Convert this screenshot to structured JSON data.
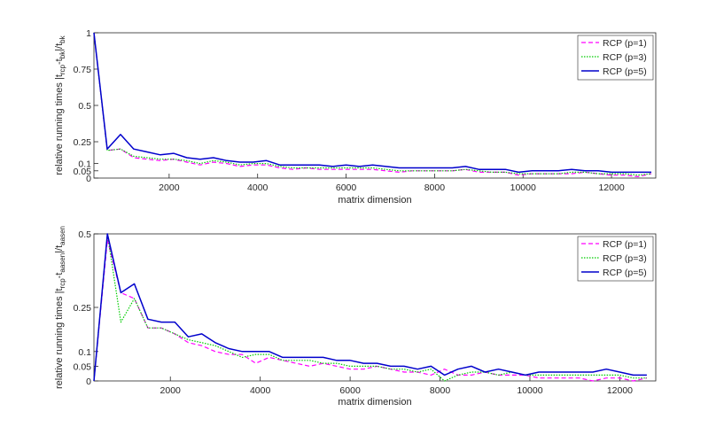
{
  "chart_data": [
    {
      "type": "line",
      "xlabel": "matrix dimension",
      "ylabel_main": "relative running times |t",
      "ylabel_sub1": "rcp",
      "ylabel_mid": "-t",
      "ylabel_sub2": "bk",
      "ylabel_tail": "|/t",
      "ylabel_sub3": "bk",
      "xlim": [
        300,
        13000
      ],
      "ylim": [
        0,
        1
      ],
      "xticks": [
        "2000",
        "4000",
        "6000",
        "8000",
        "10000",
        "12000"
      ],
      "yticks": [
        "1",
        "0.75",
        "0.5",
        "0.25",
        "0.1",
        "0.05",
        "0"
      ],
      "legend_position": "top-right",
      "x": [
        300,
        600,
        900,
        1200,
        1500,
        1800,
        2100,
        2400,
        2700,
        3000,
        3300,
        3600,
        3900,
        4200,
        4500,
        4800,
        5100,
        5400,
        5700,
        6000,
        6300,
        6600,
        6900,
        7200,
        7500,
        7800,
        8100,
        8400,
        8700,
        9000,
        9300,
        9600,
        9900,
        10200,
        10500,
        10800,
        11100,
        11400,
        11700,
        12000,
        12300,
        12600,
        12900
      ],
      "series": [
        {
          "name": "RCP (p=1)",
          "color": "#ff00ff",
          "dash": "dashed",
          "values": [
            1.0,
            0.19,
            0.2,
            0.14,
            0.13,
            0.12,
            0.13,
            0.11,
            0.09,
            0.11,
            0.1,
            0.08,
            0.09,
            0.09,
            0.07,
            0.06,
            0.07,
            0.06,
            0.06,
            0.06,
            0.06,
            0.06,
            0.05,
            0.04,
            0.05,
            0.05,
            0.05,
            0.05,
            0.06,
            0.04,
            0.04,
            0.04,
            0.02,
            0.03,
            0.03,
            0.03,
            0.03,
            0.04,
            0.03,
            0.02,
            0.02,
            0.01,
            0.03
          ]
        },
        {
          "name": "RCP (p=3)",
          "color": "#00cc00",
          "dash": "dotted",
          "values": [
            1.0,
            0.19,
            0.2,
            0.15,
            0.14,
            0.13,
            0.13,
            0.12,
            0.1,
            0.12,
            0.11,
            0.09,
            0.1,
            0.1,
            0.08,
            0.07,
            0.07,
            0.07,
            0.07,
            0.07,
            0.07,
            0.07,
            0.06,
            0.05,
            0.05,
            0.05,
            0.05,
            0.05,
            0.06,
            0.05,
            0.04,
            0.04,
            0.03,
            0.03,
            0.03,
            0.03,
            0.04,
            0.04,
            0.03,
            0.03,
            0.03,
            0.02,
            0.03
          ]
        },
        {
          "name": "RCP (p=5)",
          "color": "#0000cc",
          "dash": "solid",
          "values": [
            1.0,
            0.2,
            0.3,
            0.2,
            0.18,
            0.16,
            0.17,
            0.14,
            0.13,
            0.14,
            0.12,
            0.11,
            0.11,
            0.12,
            0.09,
            0.09,
            0.09,
            0.09,
            0.08,
            0.09,
            0.08,
            0.09,
            0.08,
            0.07,
            0.07,
            0.07,
            0.07,
            0.07,
            0.08,
            0.06,
            0.06,
            0.06,
            0.04,
            0.05,
            0.05,
            0.05,
            0.06,
            0.05,
            0.05,
            0.04,
            0.04,
            0.04,
            0.04
          ]
        }
      ]
    },
    {
      "type": "line",
      "xlabel": "matrix dimension",
      "ylabel_main": "relative running times |t",
      "ylabel_sub1": "rcp",
      "ylabel_mid": "-t",
      "ylabel_sub2": "aasen",
      "ylabel_tail": "|/t",
      "ylabel_sub3": "aasen",
      "xlim": [
        300,
        12800
      ],
      "ylim": [
        0,
        0.5
      ],
      "xticks": [
        "2000",
        "4000",
        "6000",
        "8000",
        "10000",
        "12000"
      ],
      "yticks": [
        "0.5",
        "0.25",
        "0.1",
        "0.05",
        "0"
      ],
      "legend_position": "top-right",
      "x": [
        300,
        600,
        900,
        1200,
        1500,
        1800,
        2100,
        2400,
        2700,
        3000,
        3300,
        3600,
        3900,
        4200,
        4500,
        4800,
        5100,
        5400,
        5700,
        6000,
        6300,
        6600,
        6900,
        7200,
        7500,
        7800,
        8100,
        8400,
        8700,
        9000,
        9300,
        9600,
        9900,
        10200,
        10500,
        10800,
        11100,
        11400,
        11700,
        12000,
        12300,
        12600
      ],
      "series": [
        {
          "name": "RCP (p=1)",
          "color": "#ff00ff",
          "dash": "dashed",
          "values": [
            0.0,
            0.48,
            0.3,
            0.28,
            0.18,
            0.18,
            0.16,
            0.13,
            0.12,
            0.1,
            0.09,
            0.09,
            0.06,
            0.08,
            0.07,
            0.06,
            0.05,
            0.06,
            0.05,
            0.04,
            0.04,
            0.05,
            0.04,
            0.03,
            0.03,
            0.02,
            0.04,
            0.02,
            0.02,
            0.03,
            0.02,
            0.02,
            0.02,
            0.01,
            0.01,
            0.01,
            0.01,
            0.0,
            0.01,
            0.01,
            0.0,
            0.01
          ]
        },
        {
          "name": "RCP (p=3)",
          "color": "#00cc00",
          "dash": "dotted",
          "values": [
            0.0,
            0.5,
            0.2,
            0.28,
            0.18,
            0.18,
            0.16,
            0.14,
            0.13,
            0.12,
            0.1,
            0.08,
            0.09,
            0.09,
            0.07,
            0.07,
            0.07,
            0.06,
            0.06,
            0.05,
            0.05,
            0.05,
            0.04,
            0.04,
            0.03,
            0.04,
            0.0,
            0.02,
            0.03,
            0.03,
            0.02,
            0.03,
            0.02,
            0.02,
            0.02,
            0.02,
            0.02,
            0.02,
            0.02,
            0.02,
            0.01,
            0.01
          ]
        },
        {
          "name": "RCP (p=5)",
          "color": "#0000cc",
          "dash": "solid",
          "values": [
            0.0,
            0.5,
            0.3,
            0.33,
            0.21,
            0.2,
            0.2,
            0.15,
            0.16,
            0.13,
            0.11,
            0.1,
            0.1,
            0.1,
            0.08,
            0.08,
            0.08,
            0.08,
            0.07,
            0.07,
            0.06,
            0.06,
            0.05,
            0.05,
            0.04,
            0.05,
            0.02,
            0.04,
            0.05,
            0.03,
            0.04,
            0.03,
            0.02,
            0.03,
            0.03,
            0.03,
            0.03,
            0.03,
            0.04,
            0.03,
            0.02,
            0.02
          ]
        }
      ]
    }
  ]
}
